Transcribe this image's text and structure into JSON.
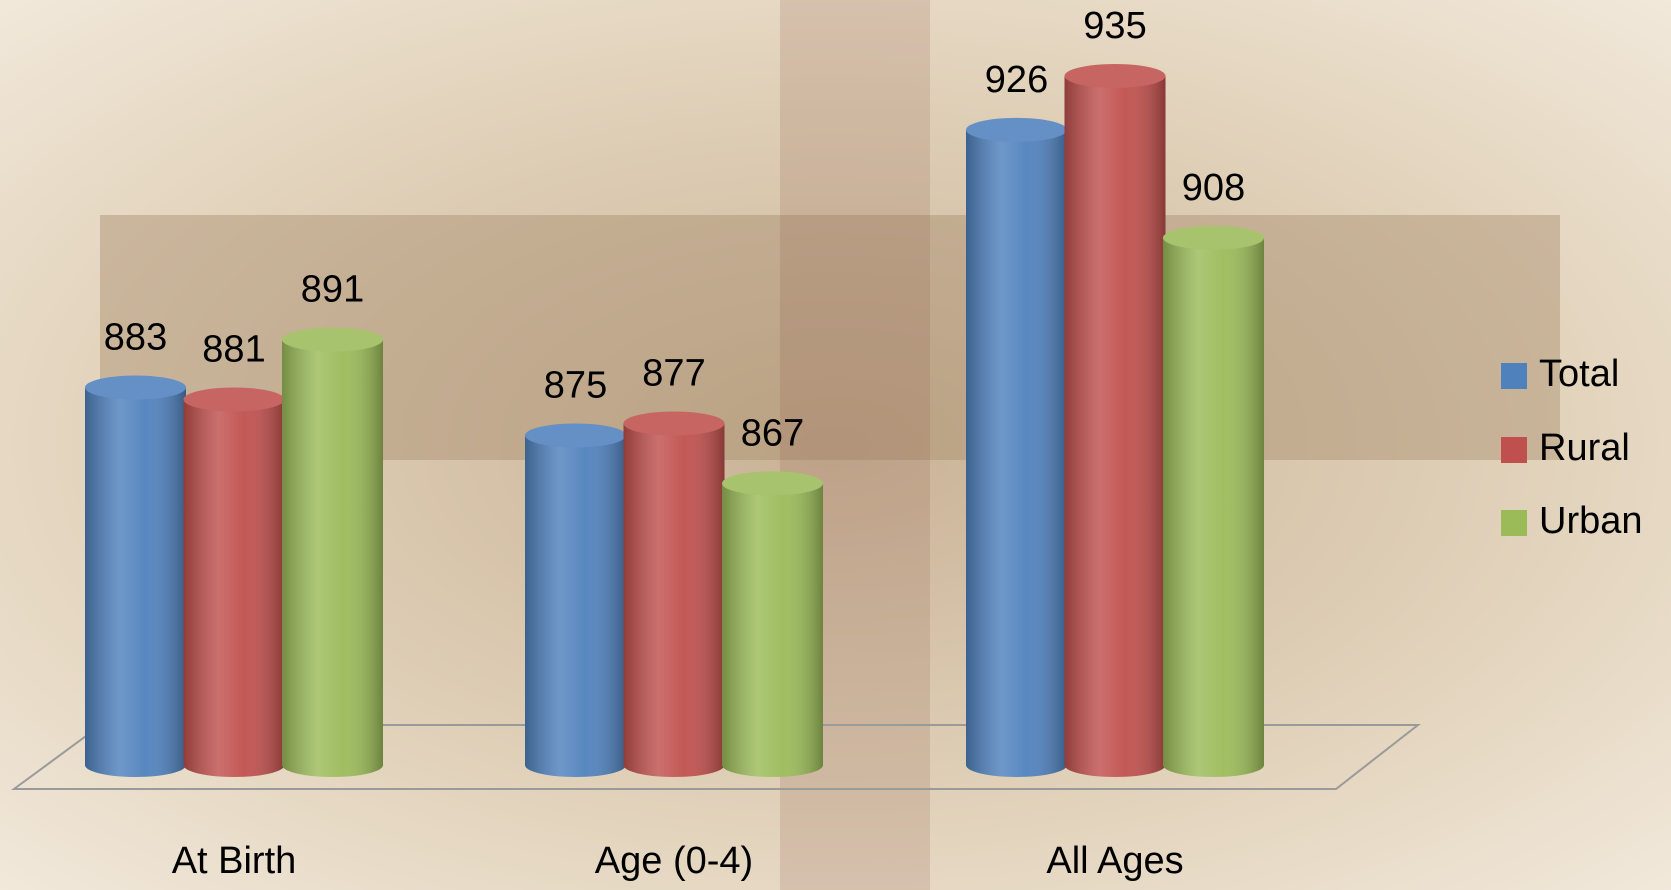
{
  "chart_data": {
    "type": "cylinder-bar",
    "categories": [
      "At Birth",
      "Age (0-4)",
      "All Ages"
    ],
    "series": [
      {
        "name": "Total",
        "color": "#4f81bd",
        "values": [
          883,
          875,
          926
        ]
      },
      {
        "name": "Rural",
        "color": "#c0504d",
        "values": [
          881,
          877,
          935
        ]
      },
      {
        "name": "Urban",
        "color": "#9bbb59",
        "values": [
          891,
          867,
          908
        ]
      }
    ],
    "ylim": [
      820,
      940
    ],
    "legend": "right"
  }
}
